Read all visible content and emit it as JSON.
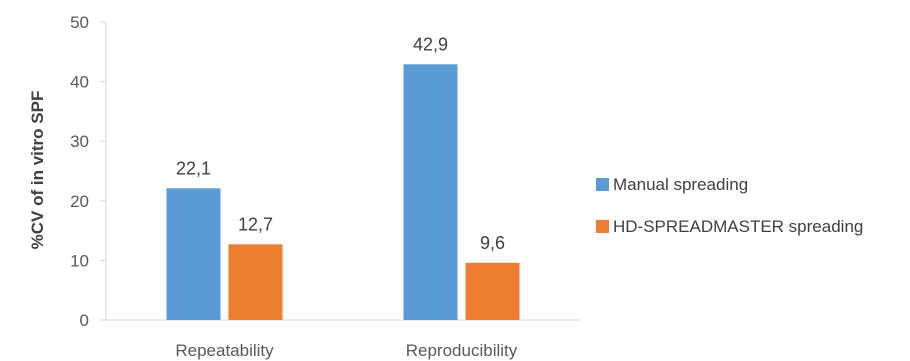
{
  "chart_data": {
    "type": "bar",
    "categories": [
      "Repeatability",
      "Reproducibility"
    ],
    "series": [
      {
        "name": "Manual spreading",
        "values": [
          22.1,
          42.9
        ],
        "labels": [
          "22,1",
          "42,9"
        ],
        "color": "#5B9BD5"
      },
      {
        "name": "HD-SPREADMASTER spreading",
        "values": [
          12.7,
          9.6
        ],
        "labels": [
          "12,7",
          "9,6"
        ],
        "color": "#ED7D31"
      }
    ],
    "ylabel": "%CV of in vitro SPF",
    "ylim": [
      0,
      50
    ],
    "yticks": [
      0,
      10,
      20,
      30,
      40,
      50
    ],
    "grid": false,
    "legend": "right"
  }
}
